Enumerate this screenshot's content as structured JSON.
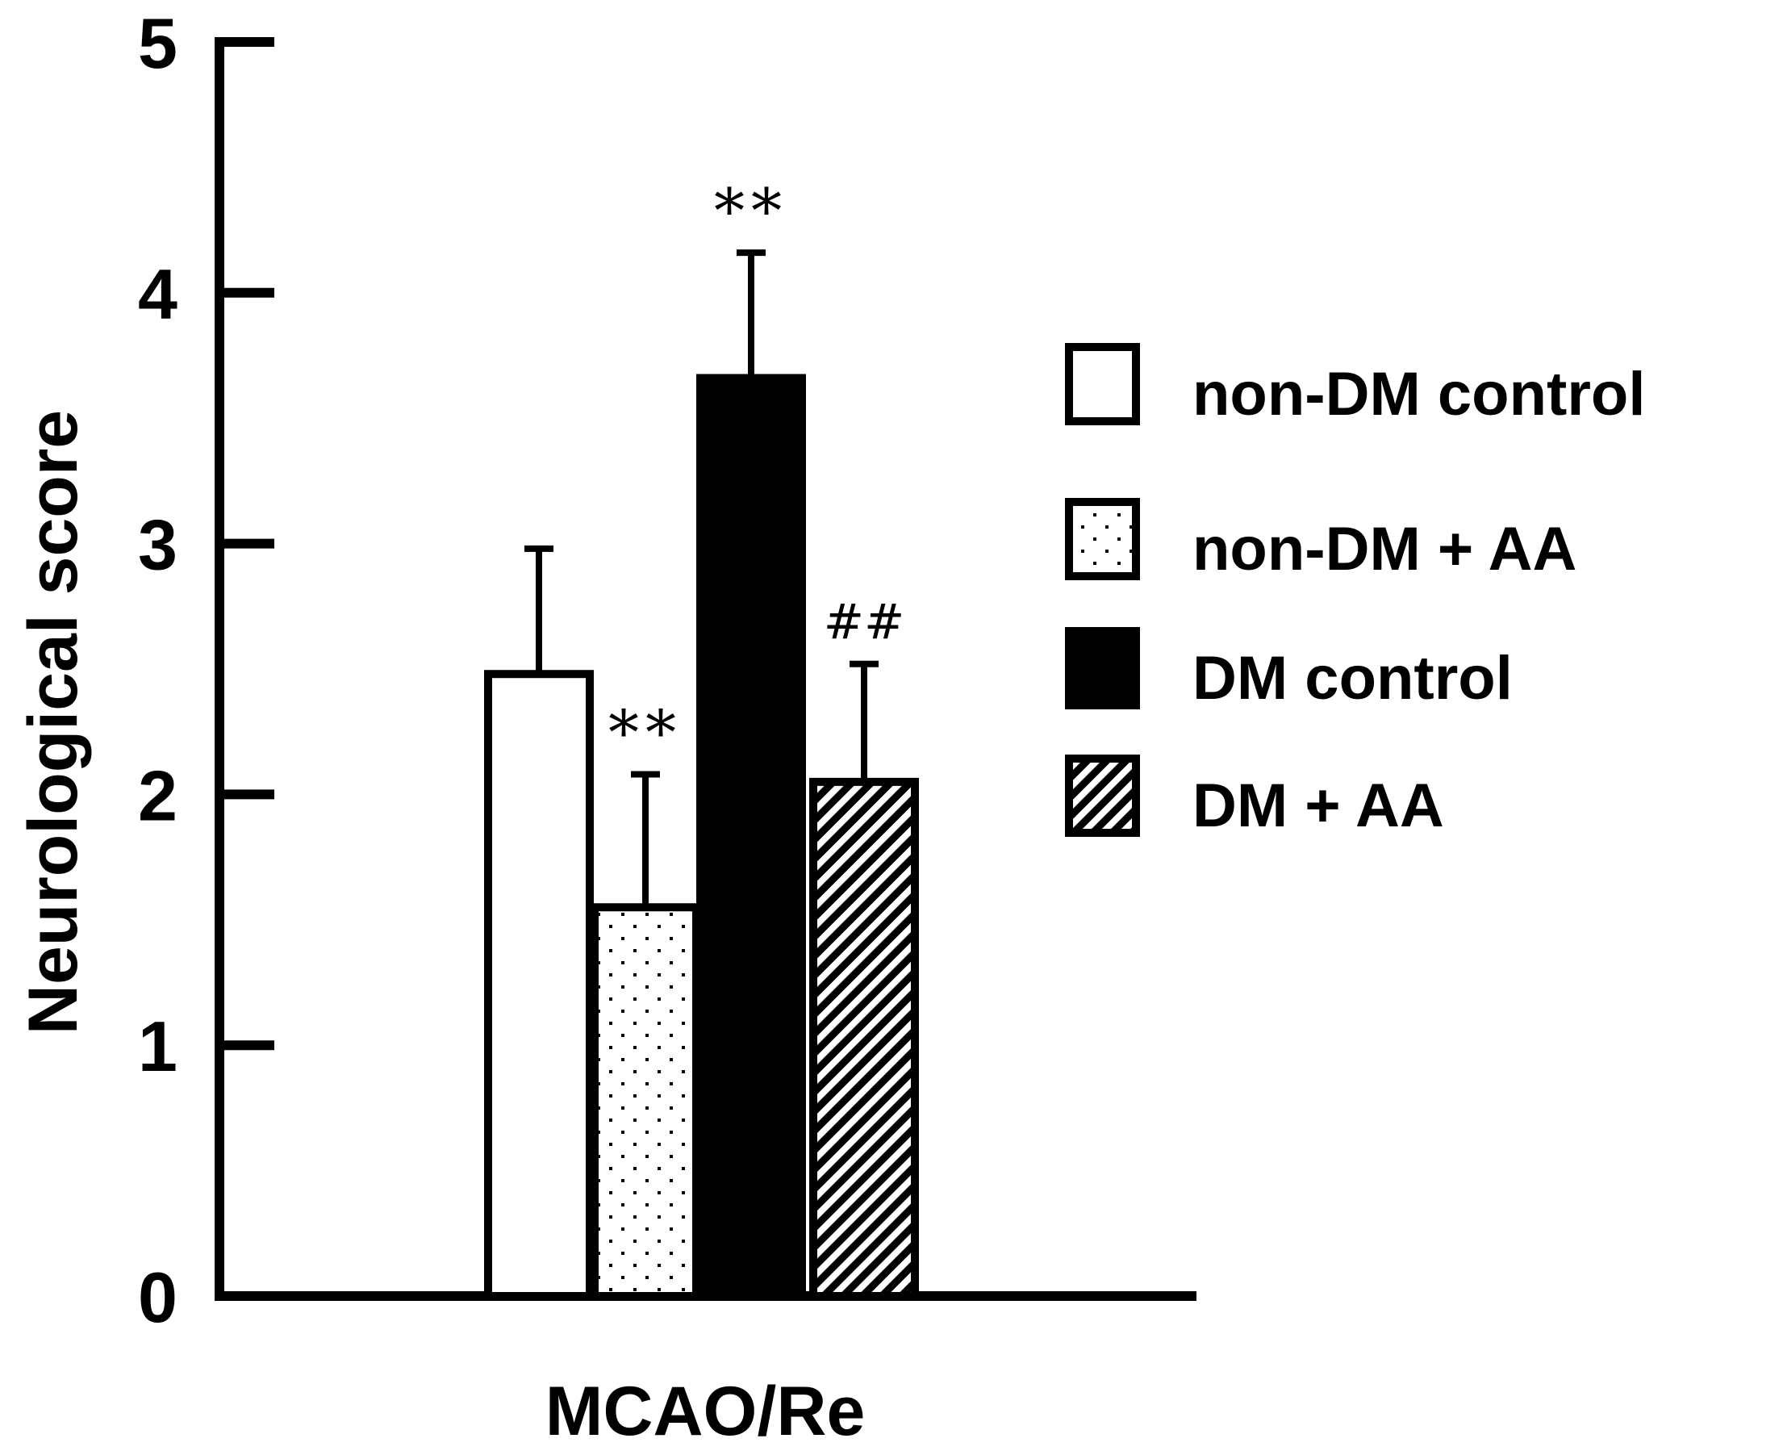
{
  "chart_data": {
    "type": "bar",
    "categories": [
      "MCAO/Re"
    ],
    "xlabel": "MCAO/Re",
    "ylabel": "Neurological score",
    "ylim": [
      0,
      5
    ],
    "yticks": [
      "0",
      "1",
      "2",
      "3",
      "4",
      "5"
    ],
    "grid": false,
    "legend_position": "right",
    "series": [
      {
        "name": "non-DM control",
        "values": [
          2.48
        ],
        "error": [
          0.5
        ],
        "fill": "white",
        "annotation": ""
      },
      {
        "name": "non-DM + AA",
        "values": [
          1.55
        ],
        "error": [
          0.53
        ],
        "fill": "dotted",
        "annotation": "**"
      },
      {
        "name": "DM control",
        "values": [
          3.66
        ],
        "error": [
          0.5
        ],
        "fill": "black",
        "annotation": "**"
      },
      {
        "name": "DM + AA",
        "values": [
          2.05
        ],
        "error": [
          0.47
        ],
        "fill": "hatched",
        "annotation": "##"
      }
    ]
  },
  "colors": {
    "ink": "#000000",
    "background": "#ffffff"
  }
}
